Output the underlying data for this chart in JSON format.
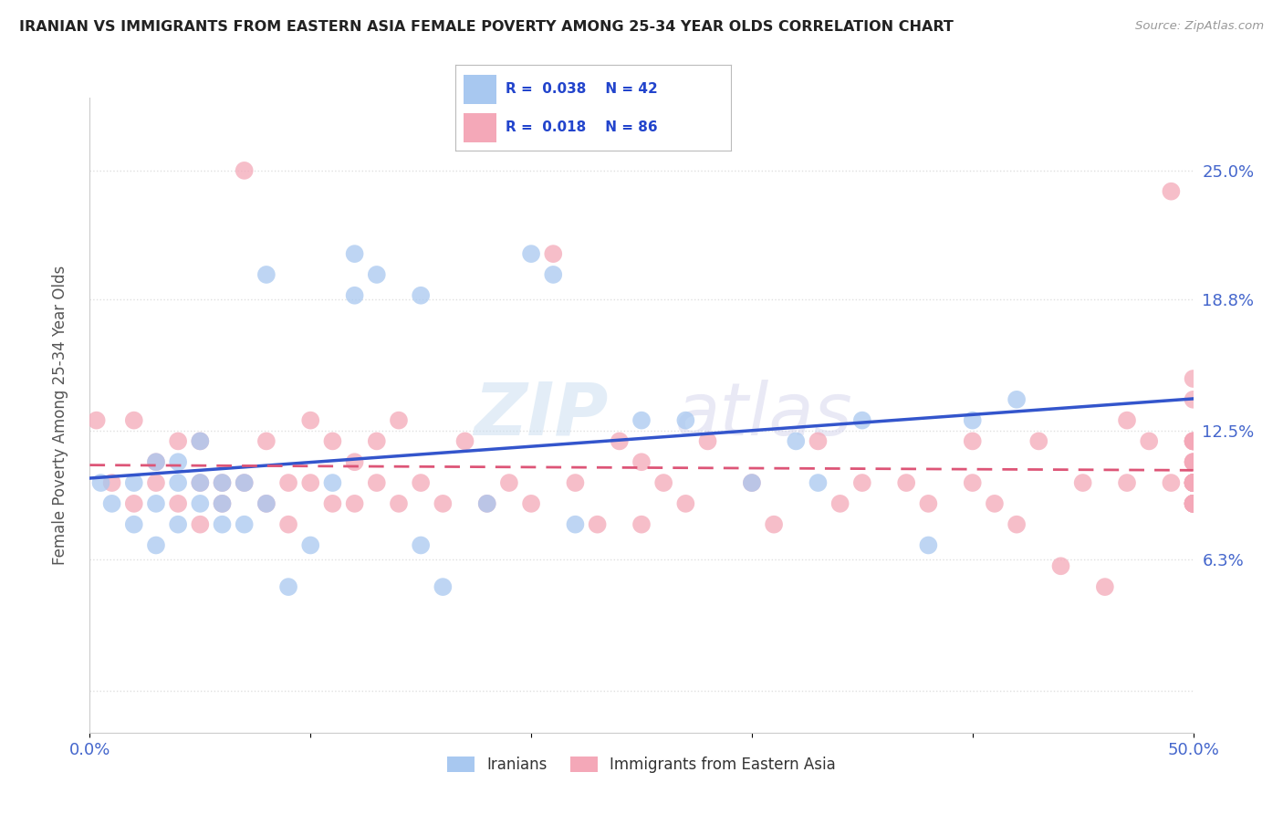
{
  "title": "IRANIAN VS IMMIGRANTS FROM EASTERN ASIA FEMALE POVERTY AMONG 25-34 YEAR OLDS CORRELATION CHART",
  "source": "Source: ZipAtlas.com",
  "ylabel": "Female Poverty Among 25-34 Year Olds",
  "xlim": [
    0.0,
    0.5
  ],
  "ylim": [
    -0.02,
    0.285
  ],
  "ytick_vals": [
    0.0,
    0.063,
    0.125,
    0.188,
    0.25
  ],
  "ytick_labels": [
    "",
    "6.3%",
    "12.5%",
    "18.8%",
    "25.0%"
  ],
  "xtick_vals": [
    0.0,
    0.1,
    0.2,
    0.3,
    0.4,
    0.5
  ],
  "xtick_labels": [
    "0.0%",
    "",
    "",
    "",
    "",
    "50.0%"
  ],
  "iranians_R": 0.038,
  "iranians_N": 42,
  "eastern_asia_R": 0.018,
  "eastern_asia_N": 86,
  "color_iranians": "#a8c8f0",
  "color_eastern_asia": "#f4a8b8",
  "line_color_iranians": "#3355cc",
  "line_color_eastern_asia": "#dd5577",
  "background_color": "#ffffff",
  "grid_color": "#e0e0e0",
  "iranians_x": [
    0.005,
    0.01,
    0.02,
    0.02,
    0.03,
    0.03,
    0.03,
    0.04,
    0.04,
    0.04,
    0.05,
    0.05,
    0.05,
    0.06,
    0.06,
    0.06,
    0.07,
    0.07,
    0.08,
    0.08,
    0.09,
    0.1,
    0.11,
    0.12,
    0.12,
    0.13,
    0.15,
    0.15,
    0.16,
    0.18,
    0.2,
    0.21,
    0.22,
    0.25,
    0.27,
    0.3,
    0.32,
    0.33,
    0.35,
    0.38,
    0.4,
    0.42
  ],
  "iranians_y": [
    0.1,
    0.09,
    0.1,
    0.08,
    0.07,
    0.09,
    0.11,
    0.08,
    0.1,
    0.11,
    0.09,
    0.1,
    0.12,
    0.08,
    0.1,
    0.09,
    0.1,
    0.08,
    0.09,
    0.2,
    0.05,
    0.07,
    0.1,
    0.19,
    0.21,
    0.2,
    0.19,
    0.07,
    0.05,
    0.09,
    0.21,
    0.2,
    0.08,
    0.13,
    0.13,
    0.1,
    0.12,
    0.1,
    0.13,
    0.07,
    0.13,
    0.14
  ],
  "eastern_asia_x": [
    0.003,
    0.01,
    0.02,
    0.02,
    0.03,
    0.03,
    0.04,
    0.04,
    0.05,
    0.05,
    0.05,
    0.06,
    0.06,
    0.07,
    0.07,
    0.08,
    0.08,
    0.09,
    0.09,
    0.1,
    0.1,
    0.11,
    0.11,
    0.12,
    0.12,
    0.13,
    0.13,
    0.14,
    0.14,
    0.15,
    0.16,
    0.17,
    0.18,
    0.19,
    0.2,
    0.21,
    0.22,
    0.23,
    0.24,
    0.25,
    0.25,
    0.26,
    0.27,
    0.28,
    0.3,
    0.31,
    0.33,
    0.34,
    0.35,
    0.37,
    0.38,
    0.4,
    0.4,
    0.41,
    0.42,
    0.43,
    0.44,
    0.45,
    0.46,
    0.47,
    0.47,
    0.48,
    0.49,
    0.49,
    0.5,
    0.5,
    0.5,
    0.5,
    0.5,
    0.5,
    0.5,
    0.5,
    0.5,
    0.5,
    0.5,
    0.5,
    0.5,
    0.5,
    0.5,
    0.5,
    0.5,
    0.5,
    0.5,
    0.5,
    0.5,
    0.5
  ],
  "eastern_asia_y": [
    0.13,
    0.1,
    0.09,
    0.13,
    0.1,
    0.11,
    0.09,
    0.12,
    0.08,
    0.1,
    0.12,
    0.09,
    0.1,
    0.1,
    0.25,
    0.09,
    0.12,
    0.1,
    0.08,
    0.1,
    0.13,
    0.09,
    0.12,
    0.09,
    0.11,
    0.1,
    0.12,
    0.09,
    0.13,
    0.1,
    0.09,
    0.12,
    0.09,
    0.1,
    0.09,
    0.21,
    0.1,
    0.08,
    0.12,
    0.08,
    0.11,
    0.1,
    0.09,
    0.12,
    0.1,
    0.08,
    0.12,
    0.09,
    0.1,
    0.1,
    0.09,
    0.12,
    0.1,
    0.09,
    0.08,
    0.12,
    0.06,
    0.1,
    0.05,
    0.13,
    0.1,
    0.12,
    0.1,
    0.24,
    0.09,
    0.12,
    0.1,
    0.11,
    0.09,
    0.12,
    0.1,
    0.09,
    0.11,
    0.1,
    0.09,
    0.1,
    0.12,
    0.1,
    0.09,
    0.11,
    0.1,
    0.09,
    0.12,
    0.1,
    0.14,
    0.15
  ]
}
